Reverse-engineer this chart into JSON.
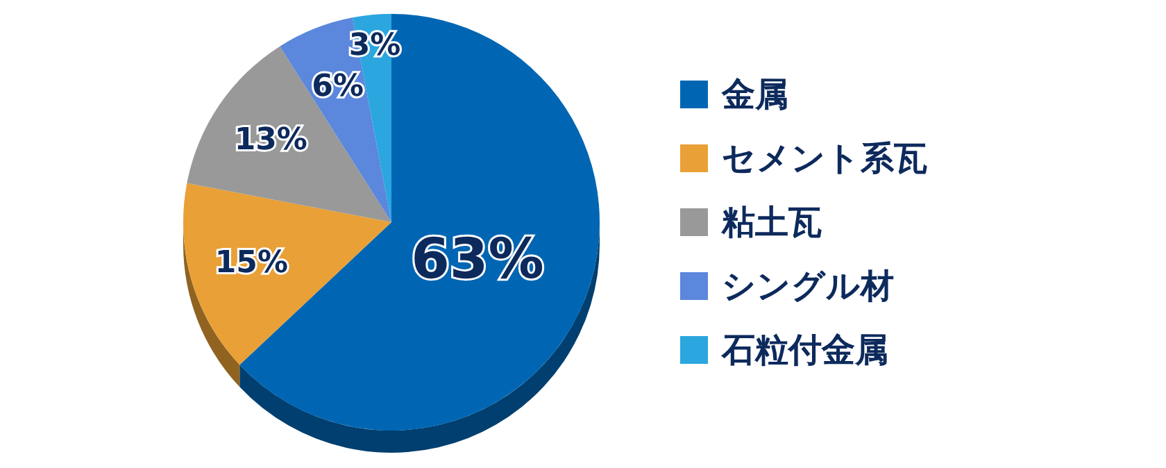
{
  "chart_data": {
    "type": "pie",
    "categories": [
      "金属",
      "セメント系瓦",
      "粘土瓦",
      "シングル材",
      "石粒付金属"
    ],
    "values": [
      63,
      15,
      13,
      6,
      3
    ],
    "colors": [
      "#0066b3",
      "#e9a036",
      "#999999",
      "#5b87dc",
      "#2ba6de"
    ],
    "value_labels": [
      "63%",
      "15%",
      "13%",
      "6%",
      "3%"
    ],
    "legend": "right"
  }
}
